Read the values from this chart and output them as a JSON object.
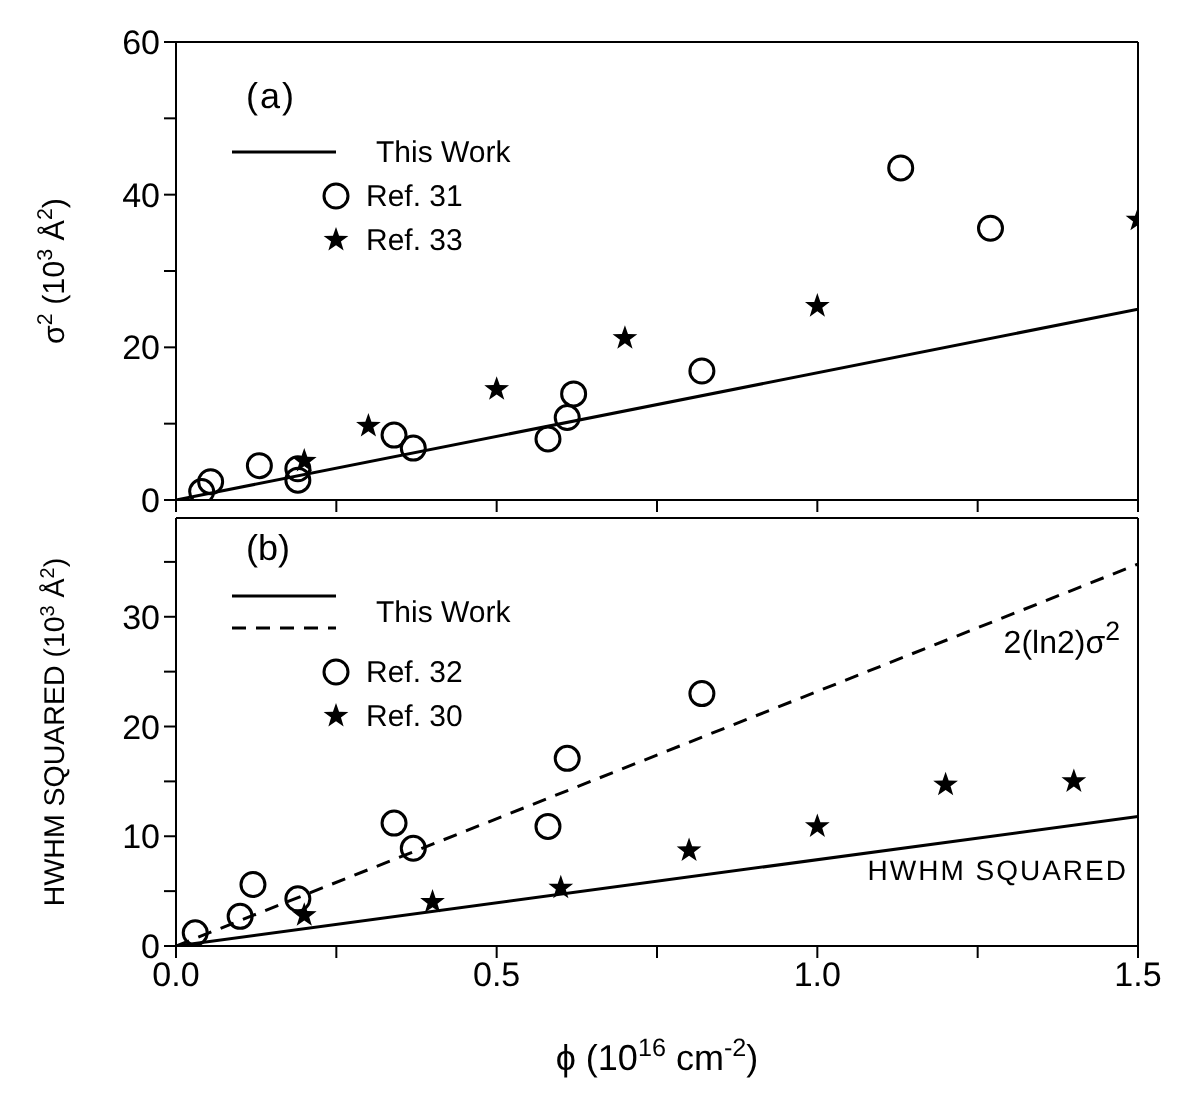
{
  "chart_data": [
    {
      "type": "scatter",
      "ylabel": "σ$^{2}$ (10$^{3}$ Å$^{2}$)",
      "annotations": [
        "(a)"
      ],
      "xlim": [
        0,
        1.5
      ],
      "xticks": [
        0,
        0.25,
        0.5,
        0.75,
        1,
        1.25,
        1.5
      ],
      "ylim": [
        0,
        60
      ],
      "yticks": [
        0,
        {
          "value": 10,
          "label": null
        },
        20,
        {
          "value": 30,
          "label": null
        },
        40,
        {
          "value": 50,
          "label": null
        },
        60
      ],
      "tick_labels": "y",
      "legend": "top left",
      "series": [
        {
          "name": "This Work",
          "type": "line",
          "color": "#000000",
          "line_style": "solid",
          "marker": "none",
          "x": [
            0,
            1.5
          ],
          "values": [
            0,
            25
          ]
        },
        {
          "name": "Ref. 31",
          "color": "#000000",
          "marker": "circle",
          "x": [
            0.04,
            0.054,
            0.13,
            0.19,
            0.19,
            0.34,
            0.37,
            0.58,
            0.61,
            0.62,
            0.82,
            1.13,
            1.27
          ],
          "values": [
            1.1,
            2.4,
            4.5,
            4.1,
            2.6,
            8.5,
            6.8,
            8.0,
            10.8,
            13.9,
            16.9,
            43.5,
            35.6
          ]
        },
        {
          "name": "Ref. 33",
          "color": "#000000",
          "marker": "star",
          "x": [
            0.2,
            0.3,
            0.5,
            0.7,
            1.0,
            1.5
          ],
          "values": [
            5.1,
            9.7,
            14.5,
            21.2,
            25.4,
            36.7
          ]
        }
      ]
    },
    {
      "type": "scatter",
      "xlabel": "ϕ (10$^{16}$ cm$^{-2}$)",
      "ylabel": "HWHM SQUARED (10$^{3}$ Å$^{2}$)",
      "annotations": [
        "(b)",
        "2(ln2)σ$^{2}$",
        "HWHM SQUARED"
      ],
      "xlim": [
        0,
        1.5
      ],
      "xticks": [
        {
          "value": 0,
          "label": "0.0"
        },
        {
          "value": 0.25,
          "label": null
        },
        {
          "value": 0.5,
          "label": "0.5"
        },
        {
          "value": 0.75,
          "label": null
        },
        {
          "value": 1,
          "label": "1.0"
        },
        {
          "value": 1.25,
          "label": null
        },
        {
          "value": 1.5,
          "label": "1.5"
        }
      ],
      "ylim": [
        0,
        39
      ],
      "yticks": [
        0,
        {
          "value": 5,
          "label": null
        },
        10,
        {
          "value": 15,
          "label": null
        },
        20,
        {
          "value": 25,
          "label": null
        },
        30,
        {
          "value": 35,
          "label": null
        }
      ],
      "legend": "top left",
      "series": [
        {
          "name": "This Work",
          "type": "line",
          "color": "#000000",
          "line_style": "solid",
          "marker": "none",
          "x": [
            0,
            1.5
          ],
          "values": [
            0,
            11.8
          ]
        },
        {
          "name": "This Work",
          "type": "line",
          "color": "#000000",
          "line_style": "dashed",
          "marker": "none",
          "x": [
            0,
            1.5
          ],
          "values": [
            0,
            34.8
          ]
        },
        {
          "name": "Ref. 32",
          "color": "#000000",
          "marker": "circle",
          "x": [
            0.03,
            0.1,
            0.12,
            0.19,
            0.34,
            0.37,
            0.58,
            0.61,
            0.82
          ],
          "values": [
            1.2,
            2.7,
            5.6,
            4.3,
            11.2,
            8.9,
            10.9,
            17.1,
            23.0
          ]
        },
        {
          "name": "Ref. 30",
          "color": "#000000",
          "marker": "star",
          "x": [
            0.2,
            0.4,
            0.6,
            0.8,
            1.0,
            1.2,
            1.4
          ],
          "values": [
            2.8,
            4.0,
            5.3,
            8.7,
            10.9,
            14.7,
            15.0
          ]
        }
      ]
    }
  ]
}
